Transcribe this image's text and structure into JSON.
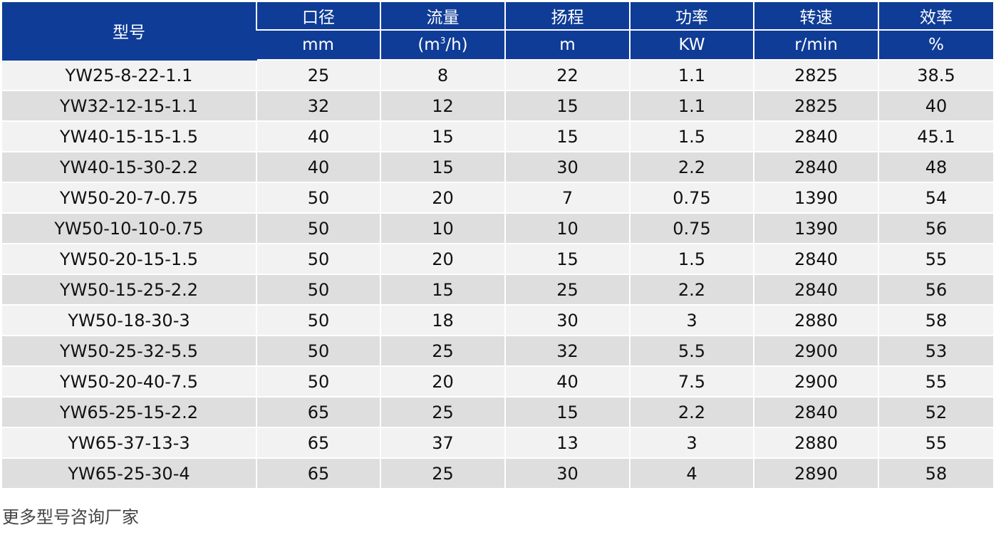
{
  "table": {
    "headers": [
      {
        "label": "型号",
        "unit": ""
      },
      {
        "label": "口径",
        "unit": "mm"
      },
      {
        "label": "流量",
        "unit_pre": "(m",
        "unit_sup": "3",
        "unit_post": "/h)"
      },
      {
        "label": "扬程",
        "unit": "m"
      },
      {
        "label": "功率",
        "unit": "KW"
      },
      {
        "label": "转速",
        "unit": "r/min"
      },
      {
        "label": "效率",
        "unit": "%"
      }
    ],
    "rows": [
      [
        "YW25-8-22-1.1",
        "25",
        "8",
        "22",
        "1.1",
        "2825",
        "38.5"
      ],
      [
        "YW32-12-15-1.1",
        "32",
        "12",
        "15",
        "1.1",
        "2825",
        "40"
      ],
      [
        "YW40-15-15-1.5",
        "40",
        "15",
        "15",
        "1.5",
        "2840",
        "45.1"
      ],
      [
        "YW40-15-30-2.2",
        "40",
        "15",
        "30",
        "2.2",
        "2840",
        "48"
      ],
      [
        "YW50-20-7-0.75",
        "50",
        "20",
        "7",
        "0.75",
        "1390",
        "54"
      ],
      [
        "YW50-10-10-0.75",
        "50",
        "10",
        "10",
        "0.75",
        "1390",
        "56"
      ],
      [
        "YW50-20-15-1.5",
        "50",
        "20",
        "15",
        "1.5",
        "2840",
        "55"
      ],
      [
        "YW50-15-25-2.2",
        "50",
        "15",
        "25",
        "2.2",
        "2840",
        "56"
      ],
      [
        "YW50-18-30-3",
        "50",
        "18",
        "30",
        "3",
        "2880",
        "58"
      ],
      [
        "YW50-25-32-5.5",
        "50",
        "25",
        "32",
        "5.5",
        "2900",
        "53"
      ],
      [
        "YW50-20-40-7.5",
        "50",
        "20",
        "40",
        "7.5",
        "2900",
        "55"
      ],
      [
        "YW65-25-15-2.2",
        "65",
        "25",
        "15",
        "2.2",
        "2840",
        "52"
      ],
      [
        "YW65-37-13-3",
        "65",
        "37",
        "13",
        "3",
        "2880",
        "55"
      ],
      [
        "YW65-25-30-4",
        "65",
        "25",
        "30",
        "4",
        "2890",
        "58"
      ]
    ]
  },
  "footer": {
    "note": "更多型号咨询厂家"
  },
  "colors": {
    "header_bg": "#0f3c96",
    "row_odd_bg": "#f2f2f2",
    "row_even_bg": "#dedede"
  }
}
